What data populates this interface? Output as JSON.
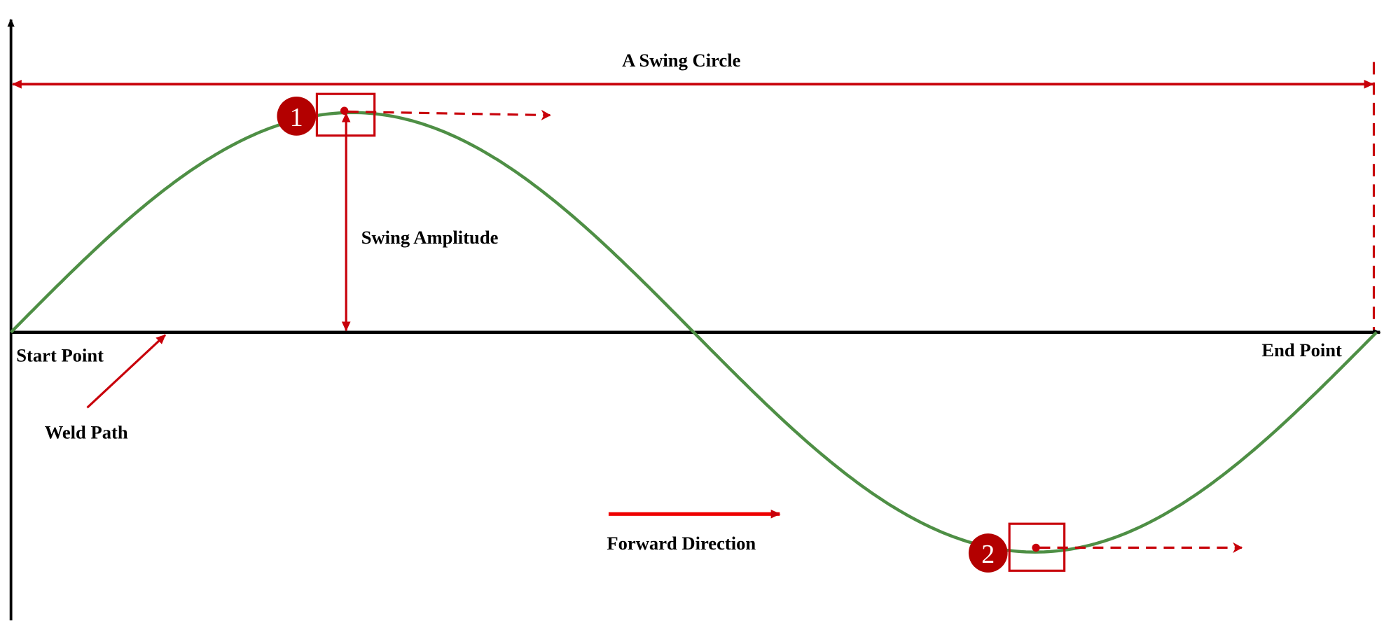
{
  "labels": {
    "title": "A Swing Circle",
    "amplitude": "Swing Amplitude",
    "start": "Start Point",
    "end": "End Point",
    "weld_path": "Weld Path",
    "forward": "Forward Direction"
  },
  "markers": [
    {
      "number": "1"
    },
    {
      "number": "2"
    }
  ],
  "colors": {
    "curve": "#4e8f45",
    "annotation": "#c8000a",
    "marker": "#b30000",
    "axis": "#000000"
  }
}
